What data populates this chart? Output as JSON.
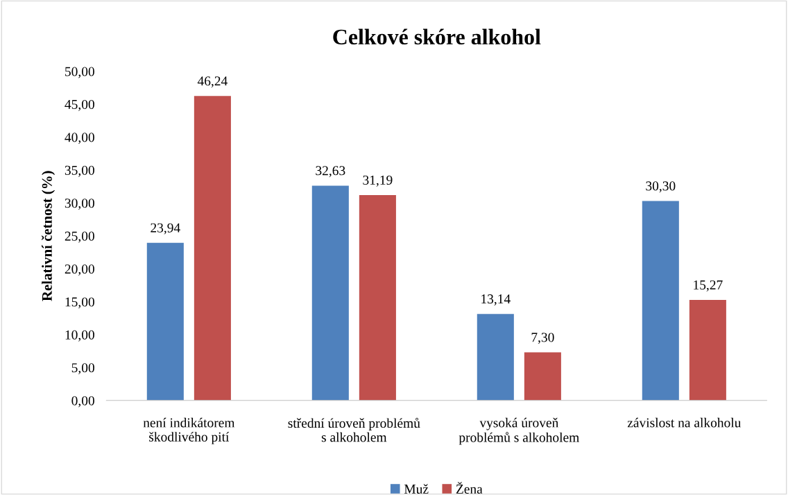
{
  "chart_data": {
    "type": "bar",
    "title": "Celkové skóre alkohol",
    "ylabel": "Relativní četnost (%)",
    "categories": [
      "není indikátorem\nškodlivého pití",
      "střední úroveň problémů\ns alkoholem",
      "vysoká úroveň\nproblémů s alkoholem",
      "závislost na alkoholu"
    ],
    "series": [
      {
        "name": "Muž",
        "color": "#4f81bd",
        "values": [
          23.94,
          32.63,
          13.14,
          30.3
        ],
        "value_labels": [
          "23,94",
          "32,63",
          "13,14",
          "30,30"
        ]
      },
      {
        "name": "Žena",
        "color": "#c0504d",
        "values": [
          46.24,
          31.19,
          7.3,
          15.27
        ],
        "value_labels": [
          "46,24",
          "31,19",
          "7,30",
          "15,27"
        ]
      }
    ],
    "ylim": [
      0,
      50
    ],
    "yticks": [
      {
        "value": 0,
        "label": "0,00"
      },
      {
        "value": 5,
        "label": "5,00"
      },
      {
        "value": 10,
        "label": "10,00"
      },
      {
        "value": 15,
        "label": "15,00"
      },
      {
        "value": 20,
        "label": "20,00"
      },
      {
        "value": 25,
        "label": "25,00"
      },
      {
        "value": 30,
        "label": "30,00"
      },
      {
        "value": 35,
        "label": "35,00"
      },
      {
        "value": 40,
        "label": "40,00"
      },
      {
        "value": 45,
        "label": "45,00"
      },
      {
        "value": 50,
        "label": "50,00"
      }
    ],
    "grid": false,
    "legend": "bottom"
  }
}
